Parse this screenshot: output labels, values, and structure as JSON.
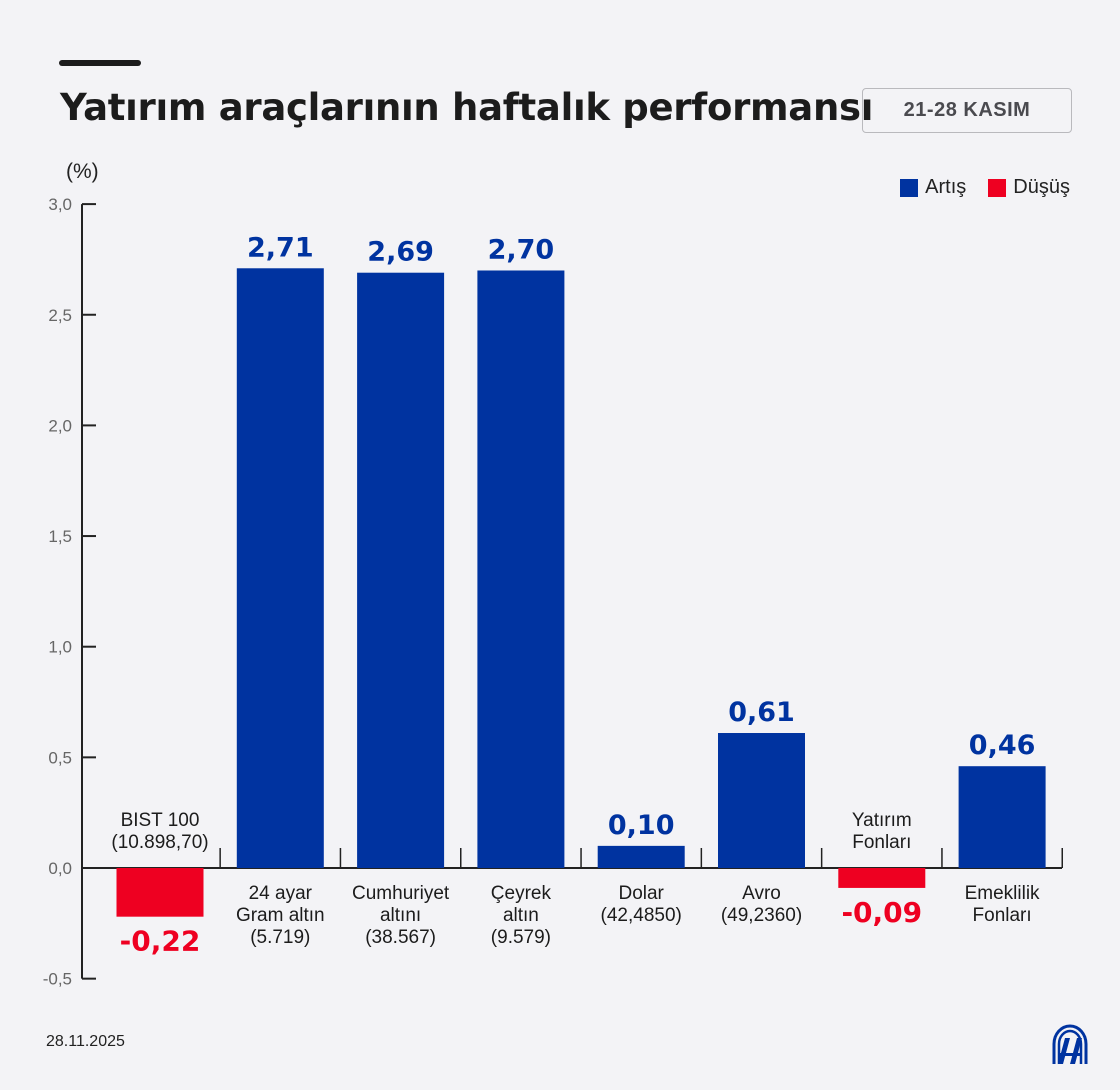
{
  "title": "Yatırım araçlarının haftalık performansı",
  "date_range": "21-28 KASIM",
  "footer_date": "28.11.2025",
  "logo": "AA",
  "colors": {
    "increase": "#0033a0",
    "decrease": "#ee0021",
    "background": "#f3f3f6"
  },
  "chart_data": {
    "type": "bar",
    "title": "Yatırım araçlarının haftalık performansı",
    "ylabel": "(%)",
    "ylim": [
      -0.5,
      3.0
    ],
    "yticks": [
      "3,0",
      "2,5",
      "2,0",
      "1,5",
      "1,0",
      "0,5",
      "0,0",
      "-0,5"
    ],
    "ytick_values": [
      3.0,
      2.5,
      2.0,
      1.5,
      1.0,
      0.5,
      0.0,
      -0.5
    ],
    "grid": false,
    "legend_position": "top-right",
    "legend": [
      {
        "label": "Artış",
        "color": "#0033a0"
      },
      {
        "label": "Düşüş",
        "color": "#ee0021"
      }
    ],
    "categories": [
      {
        "lines": [
          "BIST 100",
          "(10.898,70)"
        ]
      },
      {
        "lines": [
          "24 ayar",
          "Gram altın",
          "(5.719)"
        ]
      },
      {
        "lines": [
          "Cumhuriyet",
          "altını",
          "(38.567)"
        ]
      },
      {
        "lines": [
          "Çeyrek",
          "altın",
          "(9.579)"
        ]
      },
      {
        "lines": [
          "Dolar",
          "(42,4850)"
        ]
      },
      {
        "lines": [
          "Avro",
          "(49,2360)"
        ]
      },
      {
        "lines": [
          "Yatırım",
          "Fonları"
        ]
      },
      {
        "lines": [
          "Emeklilik",
          "Fonları"
        ]
      }
    ],
    "values": [
      -0.22,
      2.71,
      2.69,
      2.7,
      0.1,
      0.61,
      -0.09,
      0.46
    ],
    "value_labels": [
      "-0,22",
      "2,71",
      "2,69",
      "2,70",
      "0,10",
      "0,61",
      "-0,09",
      "0,46"
    ]
  }
}
